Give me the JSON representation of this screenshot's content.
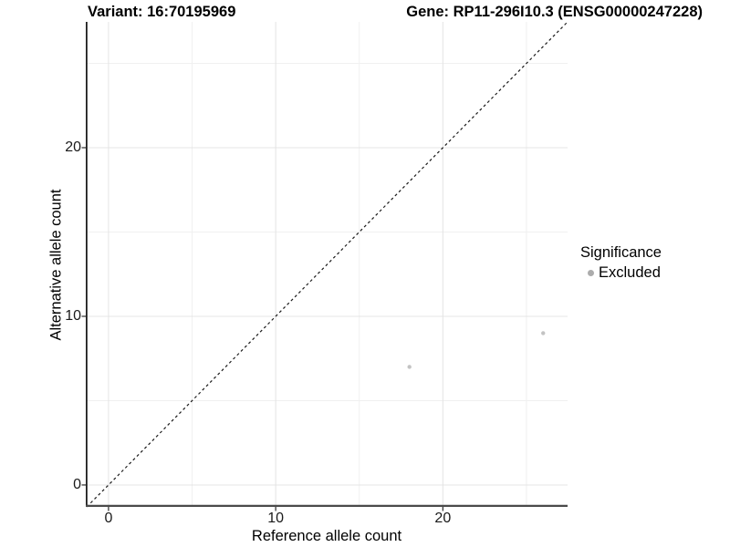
{
  "chart_data": {
    "type": "scatter",
    "title_left": "Variant: 16:70195969",
    "title_right": "Gene: RP11-296I10.3 (ENSG00000247228)",
    "xlabel": "Reference allele count",
    "ylabel": "Alternative allele count",
    "xlim": [
      -1.36,
      27.46
    ],
    "ylim": [
      -1.3,
      27.46
    ],
    "xticks": [
      0,
      10,
      20
    ],
    "yticks": [
      0,
      10,
      20
    ],
    "xminor": [
      5,
      15,
      25
    ],
    "yminor": [
      5,
      15,
      25
    ],
    "grid": true,
    "identity_line": {
      "style": "dashed",
      "color": "#1a1a1a",
      "slope": 1,
      "intercept": 0
    },
    "series": [
      {
        "name": "Excluded",
        "color": "#c3c3c3",
        "points": [
          {
            "x": 18,
            "y": 7
          },
          {
            "x": 26,
            "y": 9
          }
        ]
      }
    ],
    "legend": {
      "title": "Significance",
      "position": "right",
      "entries": [
        {
          "label": "Excluded",
          "color": "#acacac"
        }
      ]
    },
    "colors": {
      "major_grid": "#e4e4e4",
      "minor_grid": "#f0f0f0",
      "axis_line_left": "#1f1f1f",
      "axis_line_bottom": "#4a4a4a",
      "tick_mark": "#2b2b2b"
    }
  }
}
